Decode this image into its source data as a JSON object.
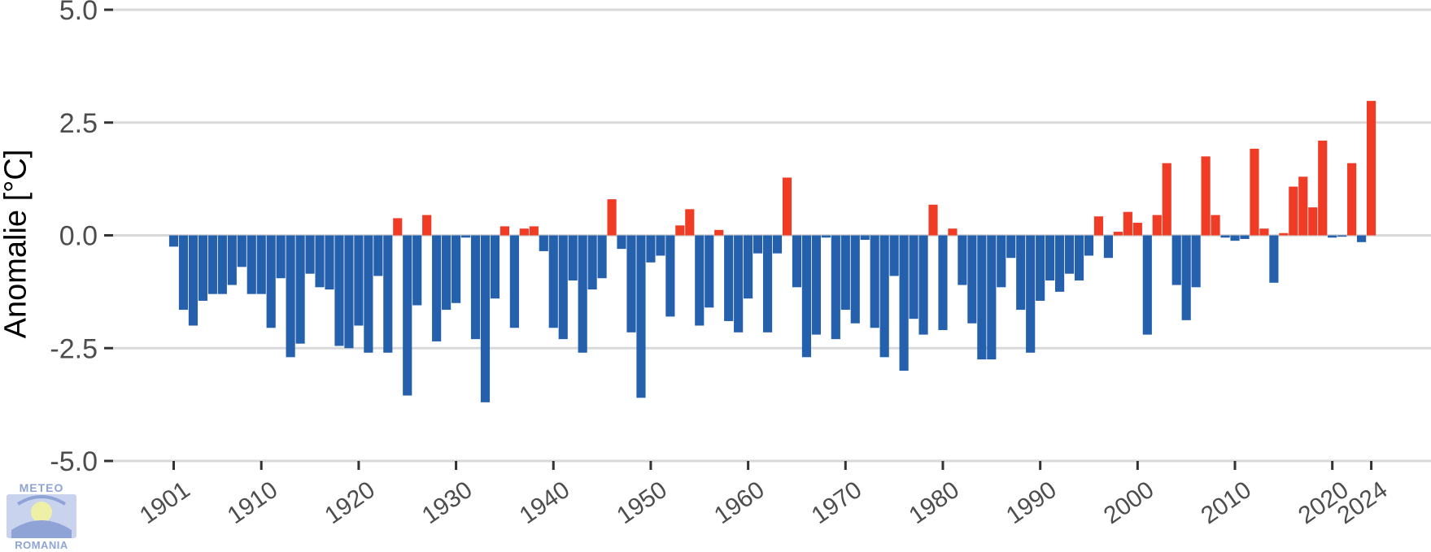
{
  "chart_data": {
    "type": "bar",
    "ylabel": "Anomalie [°C]",
    "xlabel": "",
    "ylim": [
      -5.0,
      5.0
    ],
    "yticks": [
      "5.0",
      "2.5",
      "0.0",
      "-2.5",
      "-5.0"
    ],
    "xticks": [
      "1901",
      "1910",
      "1920",
      "1930",
      "1940",
      "1950",
      "1960",
      "1970",
      "1980",
      "1990",
      "2000",
      "2010",
      "2020",
      "2024"
    ],
    "grid": true,
    "colors": {
      "positive": "#f03c24",
      "negative": "#2560ad"
    },
    "years_start": 1901,
    "years_end": 2024,
    "values": [
      -0.25,
      -1.65,
      -2.0,
      -1.45,
      -1.3,
      -1.3,
      -1.1,
      -0.7,
      -1.3,
      -1.3,
      -2.05,
      -0.95,
      -2.7,
      -2.4,
      -0.85,
      -1.15,
      -1.2,
      -2.45,
      -2.5,
      -2.0,
      -2.6,
      -0.9,
      -2.6,
      0.38,
      -3.55,
      -1.55,
      0.45,
      -2.35,
      -1.65,
      -1.5,
      -0.05,
      -2.3,
      -3.7,
      -1.4,
      0.2,
      -2.05,
      0.15,
      0.2,
      -0.35,
      -2.05,
      -2.3,
      -1.0,
      -2.6,
      -1.2,
      -0.95,
      0.8,
      -0.3,
      -2.15,
      -3.6,
      -0.6,
      -0.45,
      -1.8,
      0.22,
      0.58,
      -2.0,
      -1.6,
      0.12,
      -1.9,
      -2.15,
      -1.4,
      -0.4,
      -2.15,
      -0.4,
      1.28,
      -1.15,
      -2.7,
      -2.2,
      -0.05,
      -2.3,
      -1.65,
      -1.95,
      -0.1,
      -2.05,
      -2.7,
      -0.9,
      -3.0,
      -1.85,
      -2.2,
      0.68,
      -2.1,
      0.15,
      -1.1,
      -1.95,
      -2.75,
      -2.75,
      -1.15,
      -0.5,
      -1.65,
      -2.6,
      -1.45,
      -1.0,
      -1.25,
      -0.85,
      -1.0,
      -0.45,
      0.42,
      -0.5,
      0.08,
      0.52,
      0.28,
      -2.2,
      0.45,
      1.6,
      -1.1,
      -1.88,
      -1.15,
      1.75,
      0.45,
      -0.05,
      -0.12,
      -0.08,
      1.92,
      0.15,
      -1.05,
      0.05,
      1.08,
      1.3,
      0.62,
      2.1,
      -0.05,
      -0.03,
      1.6,
      -0.15,
      2.98
    ]
  },
  "logo": {
    "top_text": "METEO",
    "bottom_text": "ROMANIA",
    "icon": "meteo-romania-logo-icon"
  }
}
